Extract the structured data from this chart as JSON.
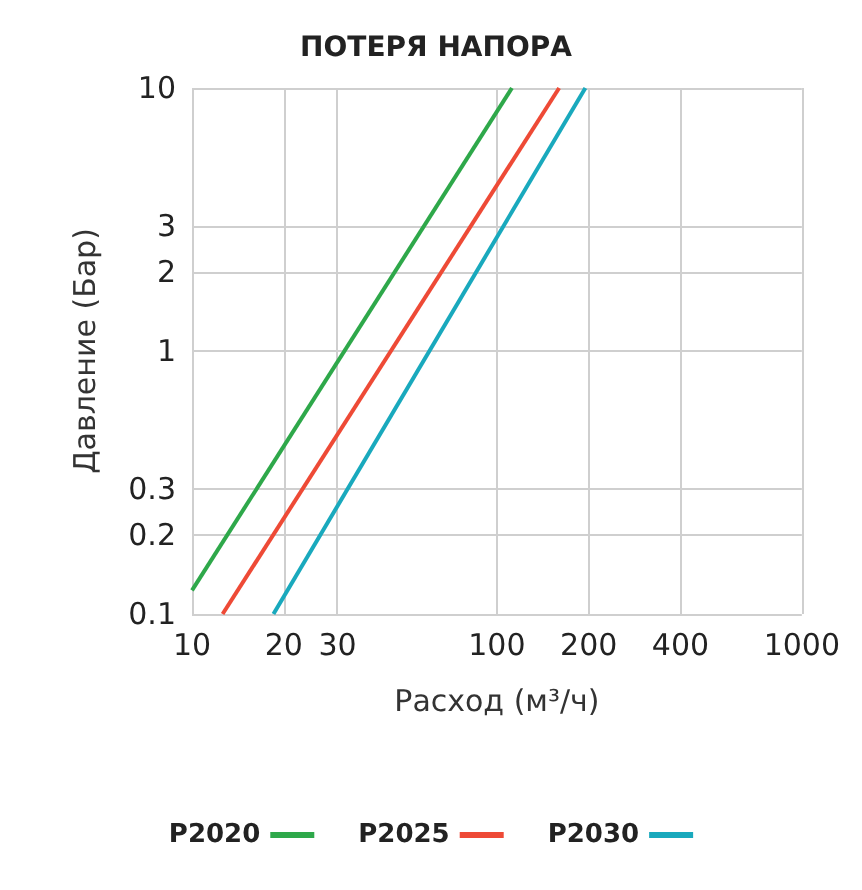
{
  "chart_data": {
    "type": "line",
    "title": "ПОТЕРЯ НАПОРА",
    "xlabel": "Расход (м³/ч)",
    "ylabel": "Давление (Бар)",
    "log": "xy",
    "xlim": [
      10,
      1000
    ],
    "ylim": [
      0.1,
      10
    ],
    "xticks": [
      10,
      20,
      30,
      100,
      200,
      400,
      1000
    ],
    "yticks": [
      0.1,
      0.2,
      0.3,
      1,
      2,
      3,
      10
    ],
    "grid": true,
    "legend": "bottom",
    "marker": "none",
    "line_style": "solid",
    "series": [
      {
        "name": "P2020",
        "color": "#2ea84a",
        "x": [
          10,
          112
        ],
        "values": [
          0.123,
          10
        ]
      },
      {
        "name": "P2025",
        "color": "#ee4a36",
        "x": [
          12.6,
          160
        ],
        "values": [
          0.1,
          10
        ]
      },
      {
        "name": "P2030",
        "color": "#19a9bd",
        "x": [
          18.5,
          195
        ],
        "values": [
          0.1,
          10
        ]
      }
    ]
  }
}
